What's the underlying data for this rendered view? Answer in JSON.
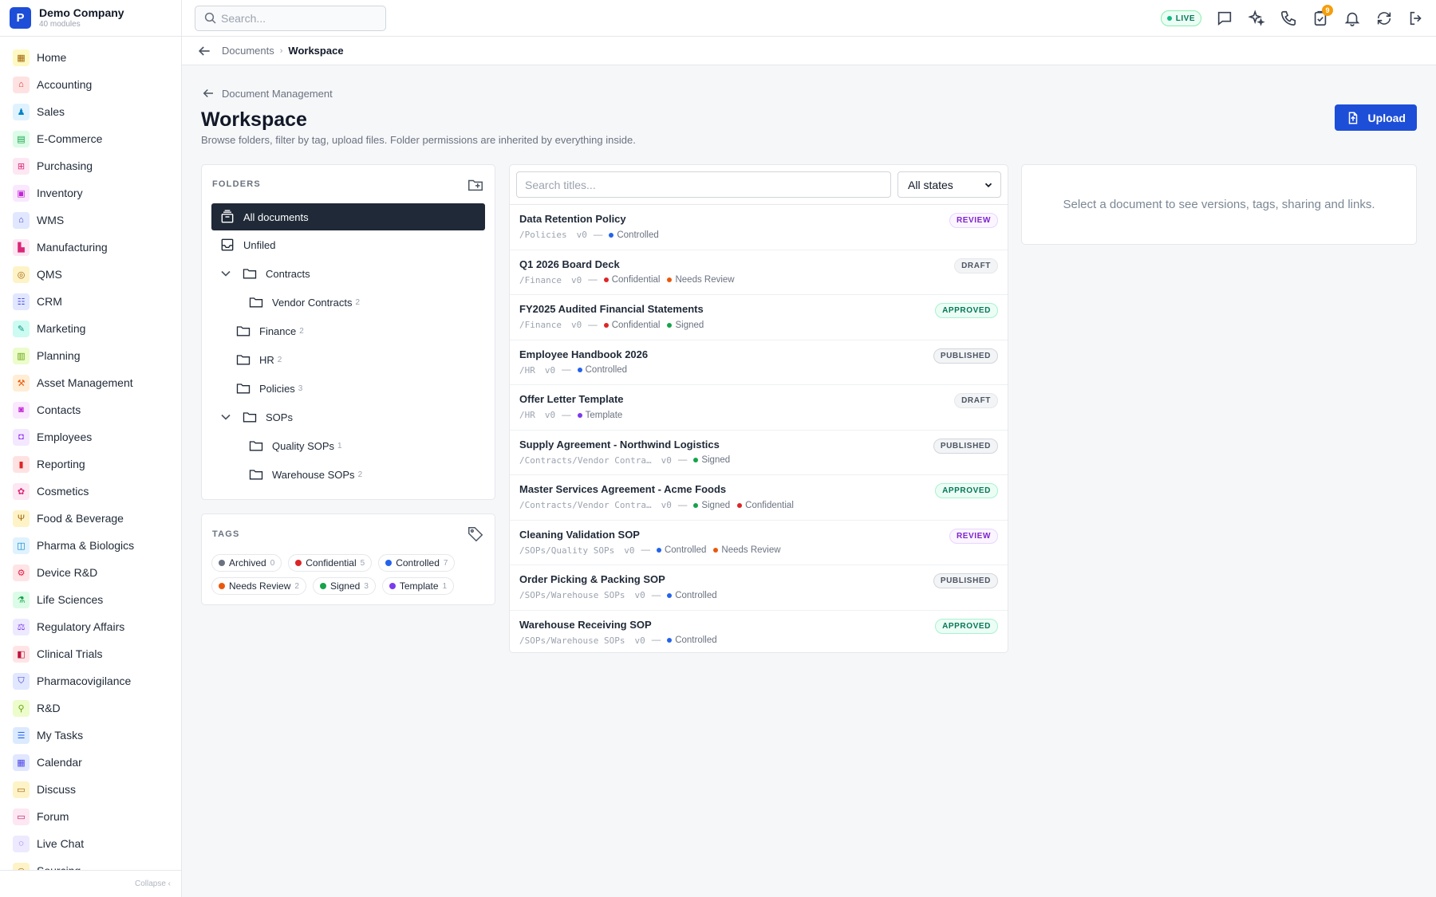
{
  "brand": {
    "logo_letter": "P",
    "name": "Demo Company",
    "sub": "40 modules"
  },
  "sidebar": {
    "items": [
      {
        "label": "Home",
        "color": "#a16207",
        "bg": "#fef9c3",
        "glyph": "▦"
      },
      {
        "label": "Accounting",
        "color": "#dc2626",
        "bg": "#fee2e2",
        "glyph": "⌂"
      },
      {
        "label": "Sales",
        "color": "#0284c7",
        "bg": "#e0f2fe",
        "glyph": "♟"
      },
      {
        "label": "E-Commerce",
        "color": "#16a34a",
        "bg": "#dcfce7",
        "glyph": "▤"
      },
      {
        "label": "Purchasing",
        "color": "#db2777",
        "bg": "#fce7f3",
        "glyph": "⊞"
      },
      {
        "label": "Inventory",
        "color": "#c026d3",
        "bg": "#fae8ff",
        "glyph": "▣"
      },
      {
        "label": "WMS",
        "color": "#4338ca",
        "bg": "#e0e7ff",
        "glyph": "⌂"
      },
      {
        "label": "Manufacturing",
        "color": "#db2777",
        "bg": "#fce7f3",
        "glyph": "▙"
      },
      {
        "label": "QMS",
        "color": "#a16207",
        "bg": "#fef3c7",
        "glyph": "◎"
      },
      {
        "label": "CRM",
        "color": "#4f46e5",
        "bg": "#e0e7ff",
        "glyph": "☷"
      },
      {
        "label": "Marketing",
        "color": "#0d9488",
        "bg": "#ccfbf1",
        "glyph": "✎"
      },
      {
        "label": "Planning",
        "color": "#65a30d",
        "bg": "#ecfccb",
        "glyph": "▥"
      },
      {
        "label": "Asset Management",
        "color": "#ea580c",
        "bg": "#ffedd5",
        "glyph": "⚒"
      },
      {
        "label": "Contacts",
        "color": "#c026d3",
        "bg": "#fae8ff",
        "glyph": "◙"
      },
      {
        "label": "Employees",
        "color": "#9333ea",
        "bg": "#f3e8ff",
        "glyph": "◘"
      },
      {
        "label": "Reporting",
        "color": "#dc2626",
        "bg": "#fee2e2",
        "glyph": "▮"
      },
      {
        "label": "Cosmetics",
        "color": "#db2777",
        "bg": "#fce7f3",
        "glyph": "✿"
      },
      {
        "label": "Food & Beverage",
        "color": "#a16207",
        "bg": "#fef3c7",
        "glyph": "Ψ"
      },
      {
        "label": "Pharma & Biologics",
        "color": "#0284c7",
        "bg": "#e0f2fe",
        "glyph": "◫"
      },
      {
        "label": "Device R&D",
        "color": "#e11d48",
        "bg": "#ffe4e6",
        "glyph": "⚙"
      },
      {
        "label": "Life Sciences",
        "color": "#16a34a",
        "bg": "#dcfce7",
        "glyph": "⚗"
      },
      {
        "label": "Regulatory Affairs",
        "color": "#7c3aed",
        "bg": "#ede9fe",
        "glyph": "⚖"
      },
      {
        "label": "Clinical Trials",
        "color": "#be123c",
        "bg": "#ffe4e6",
        "glyph": "◧"
      },
      {
        "label": "Pharmacovigilance",
        "color": "#4338ca",
        "bg": "#e0e7ff",
        "glyph": "⛉"
      },
      {
        "label": "R&D",
        "color": "#65a30d",
        "bg": "#ecfccb",
        "glyph": "⚲"
      },
      {
        "label": "My Tasks",
        "color": "#2563eb",
        "bg": "#dbeafe",
        "glyph": "☰"
      },
      {
        "label": "Calendar",
        "color": "#4f46e5",
        "bg": "#e0e7ff",
        "glyph": "▦"
      },
      {
        "label": "Discuss",
        "color": "#a16207",
        "bg": "#fef3c7",
        "glyph": "▭"
      },
      {
        "label": "Forum",
        "color": "#be185d",
        "bg": "#fce7f3",
        "glyph": "▭"
      },
      {
        "label": "Live Chat",
        "color": "#6d28d9",
        "bg": "#ede9fe",
        "glyph": "◌"
      },
      {
        "label": "Sourcing",
        "color": "#a16207",
        "bg": "#fef3c7",
        "glyph": "◎"
      }
    ],
    "collapse_label": "Collapse ‹"
  },
  "topbar": {
    "search_placeholder": "Search...",
    "live_label": "LIVE",
    "notification_badge": "9"
  },
  "breadcrumb": {
    "parent": "Documents",
    "separator": "›",
    "current": "Workspace"
  },
  "page": {
    "back_label": "Document Management",
    "title": "Workspace",
    "subtitle": "Browse folders, filter by tag, upload files. Folder permissions are inherited by everything inside.",
    "upload_label": "Upload"
  },
  "folders": {
    "heading": "FOLDERS",
    "all": "All documents",
    "unfiled": "Unfiled",
    "contracts": "Contracts",
    "vendor_contracts": "Vendor Contracts",
    "vendor_contracts_count": "2",
    "finance": "Finance",
    "finance_count": "2",
    "hr": "HR",
    "hr_count": "2",
    "policies": "Policies",
    "policies_count": "3",
    "sops": "SOPs",
    "quality_sops": "Quality SOPs",
    "quality_sops_count": "1",
    "warehouse_sops": "Warehouse SOPs",
    "warehouse_sops_count": "2"
  },
  "tags": {
    "heading": "TAGS",
    "items": [
      {
        "label": "Archived",
        "count": "0",
        "color": "#6b7280"
      },
      {
        "label": "Confidential",
        "count": "5",
        "color": "#dc2626"
      },
      {
        "label": "Controlled",
        "count": "7",
        "color": "#2563eb"
      },
      {
        "label": "Needs Review",
        "count": "2",
        "color": "#ea580c"
      },
      {
        "label": "Signed",
        "count": "3",
        "color": "#16a34a"
      },
      {
        "label": "Template",
        "count": "1",
        "color": "#7c3aed"
      }
    ]
  },
  "doclist": {
    "search_placeholder": "Search titles...",
    "state_filter": "All states",
    "rows": [
      {
        "title": "Data Retention Policy",
        "path": "/Policies",
        "version": "v0",
        "status": "REVIEW",
        "tags": [
          "Controlled"
        ]
      },
      {
        "title": "Q1 2026 Board Deck",
        "path": "/Finance",
        "version": "v0",
        "status": "DRAFT",
        "tags": [
          "Confidential",
          "Needs Review"
        ]
      },
      {
        "title": "FY2025 Audited Financial Statements",
        "path": "/Finance",
        "version": "v0",
        "status": "APPROVED",
        "tags": [
          "Confidential",
          "Signed"
        ]
      },
      {
        "title": "Employee Handbook 2026",
        "path": "/HR",
        "version": "v0",
        "status": "PUBLISHED",
        "tags": [
          "Controlled"
        ]
      },
      {
        "title": "Offer Letter Template",
        "path": "/HR",
        "version": "v0",
        "status": "DRAFT",
        "tags": [
          "Template"
        ]
      },
      {
        "title": "Supply Agreement - Northwind Logistics",
        "path": "/Contracts/Vendor Contra…",
        "version": "v0",
        "status": "PUBLISHED",
        "tags": [
          "Signed"
        ]
      },
      {
        "title": "Master Services Agreement - Acme Foods",
        "path": "/Contracts/Vendor Contra…",
        "version": "v0",
        "status": "APPROVED",
        "tags": [
          "Signed",
          "Confidential"
        ]
      },
      {
        "title": "Cleaning Validation SOP",
        "path": "/SOPs/Quality SOPs",
        "version": "v0",
        "status": "REVIEW",
        "tags": [
          "Controlled",
          "Needs Review"
        ]
      },
      {
        "title": "Order Picking & Packing SOP",
        "path": "/SOPs/Warehouse SOPs",
        "version": "v0",
        "status": "PUBLISHED",
        "tags": [
          "Controlled"
        ]
      },
      {
        "title": "Warehouse Receiving SOP",
        "path": "/SOPs/Warehouse SOPs",
        "version": "v0",
        "status": "APPROVED",
        "tags": [
          "Controlled"
        ]
      }
    ]
  },
  "detail": {
    "empty_text": "Select a document to see versions, tags, sharing and links."
  },
  "colors": {
    "accent": "#1d4ed8",
    "dark": "#1f2937"
  }
}
